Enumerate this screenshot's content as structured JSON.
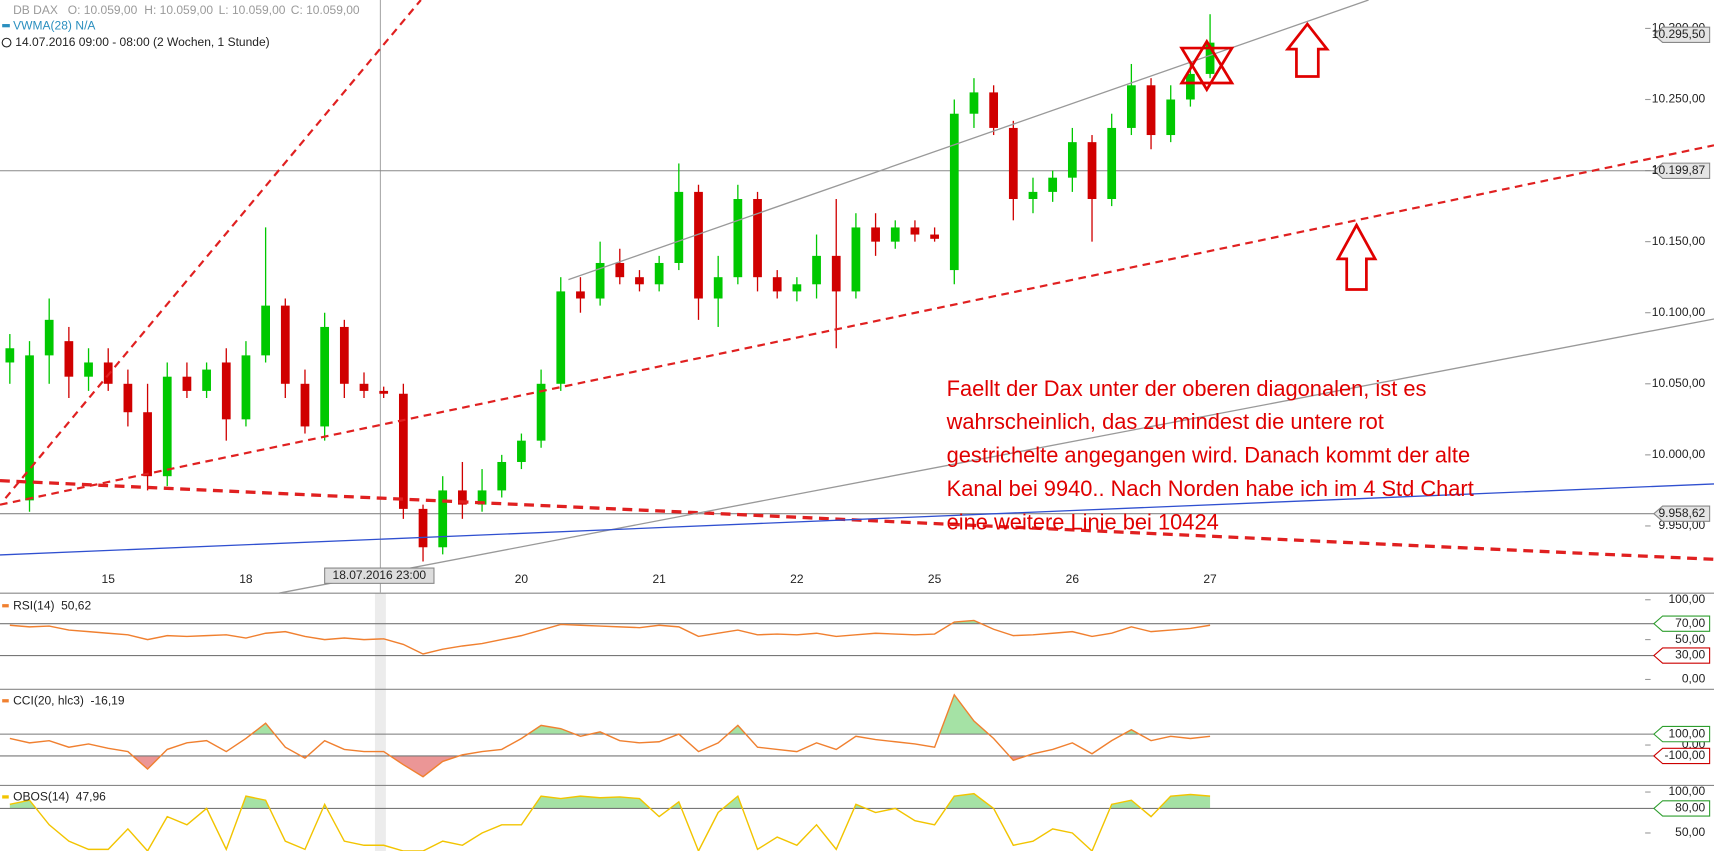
{
  "chart_data": [
    {
      "type": "candlestick",
      "symbol": "DB DAX",
      "open_label": "O: 10.059,00",
      "high_label": "H: 10.059,00",
      "low_label": "L: 10.059,00",
      "close_label": "C: 10.059,00",
      "indicator": "VWMA(28)",
      "indicator_value": "N/A",
      "period": "14.07.2016 09:00 - 08:00 (2 Wochen, 1 Stunde)",
      "cursor_label": "18.07.2016 23:00",
      "categories": [
        null,
        null,
        null,
        null,
        null,
        "15",
        null,
        null,
        null,
        null,
        null,
        null,
        "18",
        null,
        null,
        null,
        null,
        null,
        null,
        null,
        null,
        null,
        null,
        null,
        null,
        null,
        "20",
        null,
        null,
        null,
        null,
        null,
        null,
        "21",
        null,
        null,
        null,
        null,
        null,
        null,
        "22",
        null,
        null,
        null,
        null,
        null,
        null,
        "25",
        null,
        null,
        null,
        null,
        null,
        null,
        "26",
        null,
        null,
        null,
        null,
        null,
        null,
        "27"
      ],
      "open": [
        10065,
        9968,
        10070,
        10080,
        10055,
        10065,
        10050,
        10030,
        9985,
        10055,
        10045,
        10065,
        10025,
        10070,
        10105,
        10050,
        10020,
        10090,
        10050,
        10045,
        10043,
        9962,
        9935,
        9975,
        9965,
        9975,
        9995,
        10010,
        10050,
        10115,
        10110,
        10135,
        10125,
        10120,
        10135,
        10185,
        10110,
        10125,
        10180,
        10125,
        10115,
        10120,
        10140,
        10115,
        10160,
        10150,
        10160,
        10155,
        10130,
        10240,
        10255,
        10230,
        10180,
        10185,
        10195,
        10220,
        10180,
        10230,
        10260,
        10225,
        10250,
        10268
      ],
      "high": [
        10085,
        10080,
        10110,
        10090,
        10075,
        10075,
        10060,
        10050,
        10065,
        10065,
        10065,
        10075,
        10080,
        10160,
        10110,
        10060,
        10100,
        10095,
        10058,
        10048,
        10050,
        9965,
        9985,
        9995,
        9990,
        10000,
        10015,
        10060,
        10125,
        10125,
        10150,
        10145,
        10130,
        10140,
        10205,
        10190,
        10140,
        10190,
        10185,
        10130,
        10125,
        10155,
        10180,
        10170,
        10170,
        10165,
        10165,
        10160,
        10250,
        10265,
        10260,
        10235,
        10195,
        10200,
        10230,
        10225,
        10240,
        10275,
        10265,
        10260,
        10275,
        10310
      ],
      "low": [
        10050,
        9960,
        10050,
        10040,
        10045,
        10045,
        10020,
        9975,
        9978,
        10040,
        10040,
        10010,
        10020,
        10065,
        10040,
        10015,
        10010,
        10040,
        10040,
        10040,
        9955,
        9925,
        9930,
        9955,
        9960,
        9970,
        9990,
        10005,
        10045,
        10100,
        10105,
        10120,
        10115,
        10115,
        10130,
        10095,
        10090,
        10120,
        10115,
        10110,
        10108,
        10110,
        10075,
        10110,
        10140,
        10145,
        10150,
        10150,
        10120,
        10230,
        10225,
        10165,
        10170,
        10178,
        10185,
        10150,
        10175,
        10225,
        10215,
        10220,
        10245,
        10265
      ],
      "close": [
        10075,
        10070,
        10095,
        10055,
        10065,
        10050,
        10030,
        9985,
        10055,
        10045,
        10060,
        10025,
        10070,
        10105,
        10050,
        10020,
        10090,
        10050,
        10045,
        10043,
        9962,
        9935,
        9975,
        9965,
        9975,
        9995,
        10010,
        10050,
        10115,
        10110,
        10135,
        10125,
        10120,
        10135,
        10185,
        10110,
        10125,
        10180,
        10125,
        10115,
        10120,
        10140,
        10115,
        10160,
        10150,
        10160,
        10155,
        10152,
        10240,
        10255,
        10230,
        10180,
        10185,
        10195,
        10220,
        10180,
        10230,
        10260,
        10225,
        10250,
        10268,
        10290
      ],
      "up_color": "#00c800",
      "down_color": "#d00000",
      "ylim": [
        9905,
        10320
      ],
      "yticks": [
        {
          "value": 9950,
          "label": "9.950,00"
        },
        {
          "value": 10000,
          "label": "10.000,00"
        },
        {
          "value": 10050,
          "label": "10.050,00"
        },
        {
          "value": 10100,
          "label": "10.100,00"
        },
        {
          "value": 10150,
          "label": "10.150,00"
        },
        {
          "value": 10200,
          "label": "10.200,00"
        },
        {
          "value": 10250,
          "label": "10.250,00"
        },
        {
          "value": 10300,
          "label": "10.300,00"
        }
      ],
      "price_lines": [
        {
          "value": 10199.87,
          "label": "10.199,87"
        },
        {
          "value": 9958.62,
          "label": "9.958,62"
        }
      ],
      "last_price": {
        "value": 10295.5,
        "label": "10.295,50"
      },
      "annotation": [
        "Faellt der Dax unter der oberen diagonalen, ist es",
        "wahrscheinlich, das zu mindest die untere rot",
        "gestrichelte angegangen wird. Danach kommt der alte",
        "Kanal bei 9940.. Nach Norden habe ich im 4 Std Chart",
        "eine weitere Linie bei 10424"
      ]
    },
    {
      "type": "line",
      "title": "RSI(14)",
      "subtitle": "50,62",
      "color": "#f08030",
      "values": [
        68,
        66,
        67,
        62,
        60,
        58,
        56,
        50,
        55,
        54,
        55,
        56,
        52,
        58,
        60,
        54,
        50,
        52,
        50,
        51,
        44,
        32,
        38,
        42,
        45,
        50,
        55,
        62,
        69,
        68,
        67,
        66,
        65,
        68,
        66,
        54,
        58,
        62,
        56,
        57,
        56,
        58,
        54,
        56,
        58,
        57,
        56,
        57,
        72,
        74,
        63,
        55,
        56,
        58,
        60,
        54,
        58,
        66,
        60,
        62,
        64,
        68
      ],
      "ylim": [
        -11,
        105.5
      ],
      "yticks": [
        {
          "value": 100,
          "label": "100,00"
        },
        {
          "value": 50,
          "label": "50,00"
        },
        {
          "value": 0,
          "label": "0,00"
        }
      ],
      "thresholds": [
        {
          "value": 70,
          "label": "70,00",
          "color": "#2e9e2e"
        },
        {
          "value": 30,
          "label": "30,00",
          "color": "#cc0000"
        }
      ]
    },
    {
      "type": "line",
      "title": "CCI(20, hlc3)",
      "subtitle": "-16,19",
      "color": "#f08030",
      "values": [
        60,
        20,
        40,
        -20,
        10,
        -30,
        -60,
        -220,
        -40,
        20,
        40,
        -60,
        60,
        200,
        -20,
        -120,
        40,
        -40,
        -60,
        -60,
        -180,
        -290,
        -150,
        -90,
        -60,
        -40,
        60,
        180,
        150,
        80,
        120,
        40,
        20,
        30,
        100,
        -60,
        20,
        180,
        -20,
        -40,
        -60,
        20,
        -40,
        80,
        50,
        30,
        10,
        -20,
        460,
        220,
        60,
        -140,
        -80,
        -40,
        20,
        -80,
        40,
        140,
        40,
        80,
        60,
        80
      ],
      "ylim": [
        -360,
        500
      ],
      "yticks": [
        {
          "value": 0,
          "label": "0,00"
        }
      ],
      "thresholds": [
        {
          "value": 100,
          "label": "100,00",
          "color": "#2e9e2e"
        },
        {
          "value": -100,
          "label": "-100,00",
          "color": "#cc0000"
        }
      ]
    },
    {
      "type": "line",
      "title": "OBOS(14)",
      "subtitle": "47,96",
      "color": "#f2c400",
      "values": [
        85,
        90,
        60,
        40,
        30,
        30,
        55,
        28,
        70,
        60,
        80,
        30,
        95,
        90,
        40,
        30,
        85,
        40,
        35,
        35,
        28,
        28,
        40,
        35,
        50,
        60,
        60,
        95,
        92,
        95,
        93,
        94,
        92,
        70,
        88,
        28,
        75,
        95,
        30,
        45,
        35,
        60,
        30,
        85,
        75,
        80,
        65,
        60,
        95,
        98,
        80,
        35,
        40,
        55,
        50,
        28,
        85,
        90,
        70,
        95,
        97,
        95
      ],
      "ylim": [
        28,
        106.7
      ],
      "yticks": [
        {
          "value": 100,
          "label": "100,00"
        },
        {
          "value": 50,
          "label": "50,00"
        }
      ],
      "thresholds": [
        {
          "value": 80,
          "label": "80,00",
          "color": "#2e9e2e"
        }
      ]
    }
  ]
}
